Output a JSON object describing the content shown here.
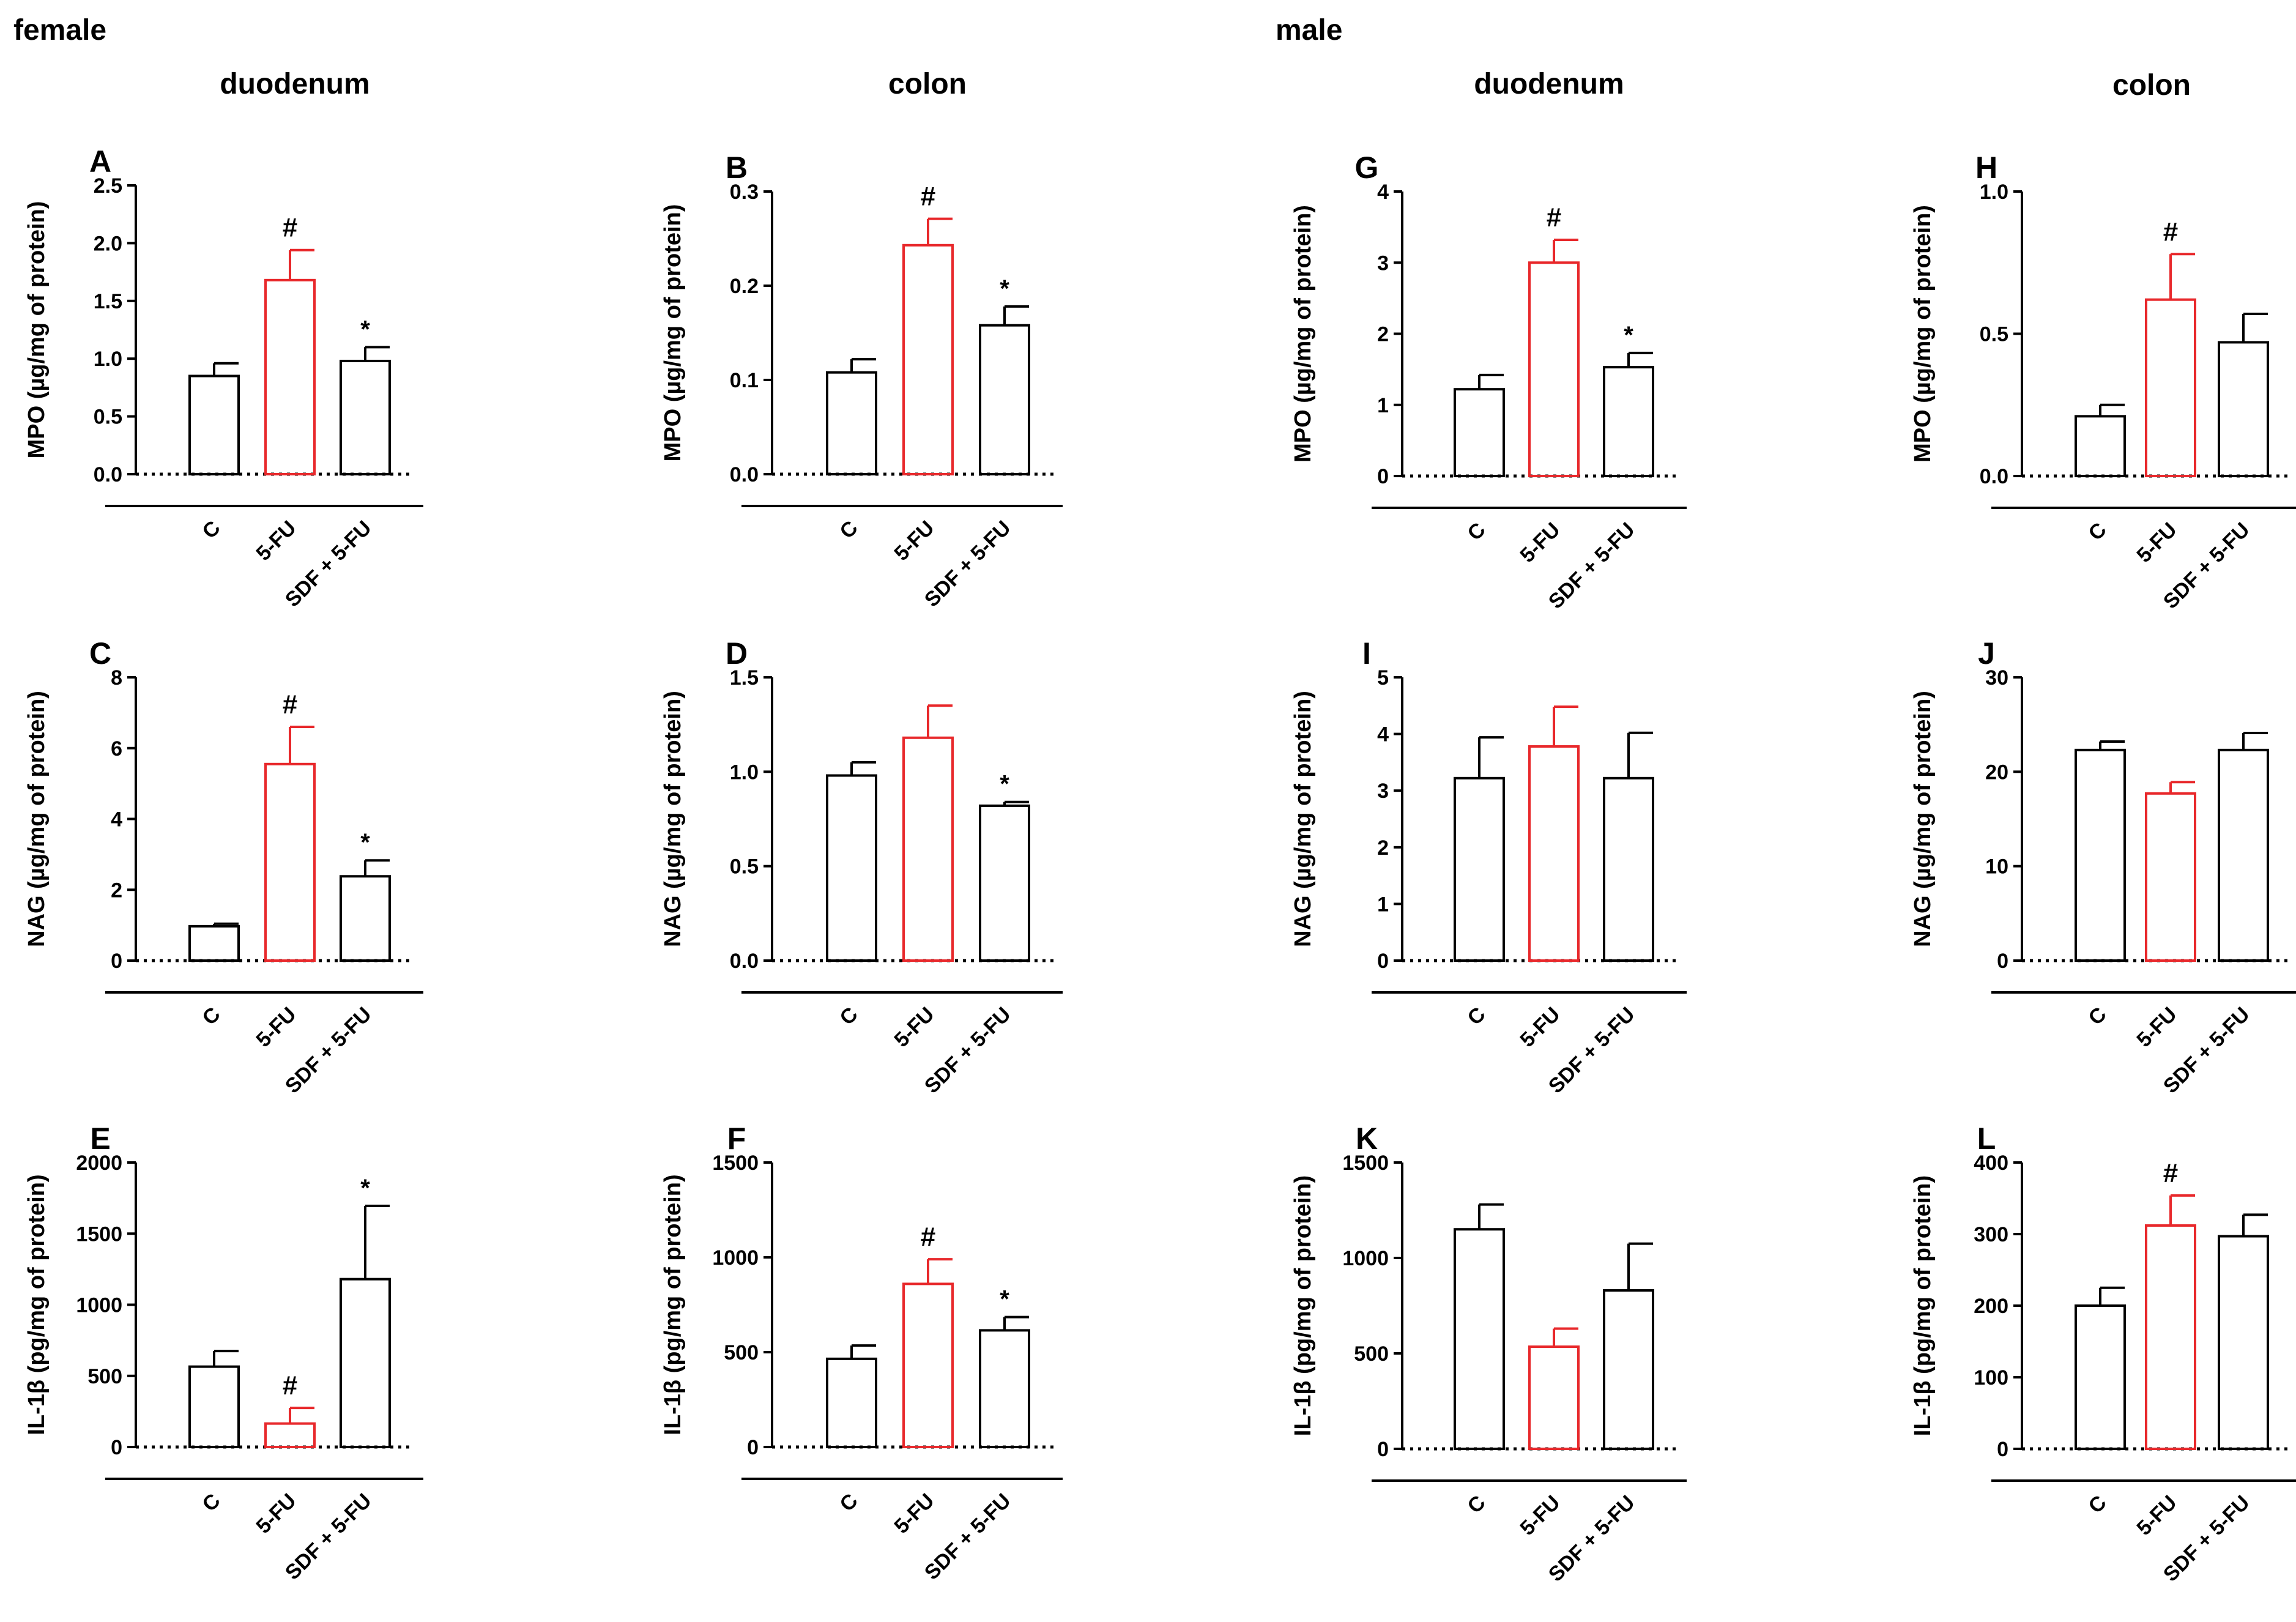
{
  "sections": [
    {
      "label": "female"
    },
    {
      "label": "male"
    }
  ],
  "regions": [
    {
      "label": "duodenum"
    },
    {
      "label": "colon"
    },
    {
      "label": "duodenum"
    },
    {
      "label": "colon"
    }
  ],
  "colors": {
    "control": "#000000",
    "treated": "#e8282b",
    "axis": "#000000"
  },
  "chart_data": [
    {
      "panel": "A",
      "type": "bar",
      "ylabel": "MPO (µg/mg of protein)",
      "ylim": [
        0,
        2.5
      ],
      "yticks": [
        0.0,
        0.5,
        1.0,
        1.5,
        2.0,
        2.5
      ],
      "ytick_labels": [
        "0.0",
        "0.5",
        "1.0",
        "1.5",
        "2.0",
        "2.5"
      ],
      "categories": [
        "C",
        "5-FU",
        "SDF + 5-FU"
      ],
      "values": [
        0.85,
        1.68,
        0.98
      ],
      "errors": [
        0.11,
        0.26,
        0.12
      ],
      "sig": [
        "",
        "#",
        "*"
      ]
    },
    {
      "panel": "B",
      "type": "bar",
      "ylabel": "MPO (µg/mg of protein)",
      "ylim": [
        0,
        0.3
      ],
      "yticks": [
        0.0,
        0.1,
        0.2,
        0.3
      ],
      "ytick_labels": [
        "0.0",
        "0.1",
        "0.2",
        "0.3"
      ],
      "categories": [
        "C",
        "5-FU",
        "SDF + 5-FU"
      ],
      "values": [
        0.108,
        0.243,
        0.158
      ],
      "errors": [
        0.014,
        0.028,
        0.02
      ],
      "sig": [
        "",
        "#",
        "*"
      ]
    },
    {
      "panel": "G",
      "type": "bar",
      "ylabel": "MPO (µg/mg of protein)",
      "ylim": [
        0,
        4
      ],
      "yticks": [
        0,
        1,
        2,
        3,
        4
      ],
      "ytick_labels": [
        "0",
        "1",
        "2",
        "3",
        "4"
      ],
      "categories": [
        "C",
        "5-FU",
        "SDF + 5-FU"
      ],
      "values": [
        1.22,
        3.0,
        1.53
      ],
      "errors": [
        0.2,
        0.32,
        0.2
      ],
      "sig": [
        "",
        "#",
        "*"
      ]
    },
    {
      "panel": "H",
      "type": "bar",
      "ylabel": "MPO (µg/mg of protein)",
      "ylim": [
        0,
        1.0
      ],
      "yticks": [
        0.0,
        0.5,
        1.0
      ],
      "ytick_labels": [
        "0.0",
        "0.5",
        "1.0"
      ],
      "categories": [
        "C",
        "5-FU",
        "SDF + 5-FU"
      ],
      "values": [
        0.21,
        0.62,
        0.47
      ],
      "errors": [
        0.04,
        0.16,
        0.1
      ],
      "sig": [
        "",
        "#",
        ""
      ]
    },
    {
      "panel": "C",
      "type": "bar",
      "ylabel": "NAG (µg/mg of protein)",
      "ylim": [
        0,
        8
      ],
      "yticks": [
        0,
        2,
        4,
        6,
        8
      ],
      "ytick_labels": [
        "0",
        "2",
        "4",
        "6",
        "8"
      ],
      "categories": [
        "C",
        "5-FU",
        "SDF + 5-FU"
      ],
      "values": [
        0.97,
        5.55,
        2.38
      ],
      "errors": [
        0.07,
        1.05,
        0.45
      ],
      "sig": [
        "",
        "#",
        "*"
      ]
    },
    {
      "panel": "D",
      "type": "bar",
      "ylabel": "NAG (µg/mg of protein)",
      "ylim": [
        0,
        1.5
      ],
      "yticks": [
        0.0,
        0.5,
        1.0,
        1.5
      ],
      "ytick_labels": [
        "0.0",
        "0.5",
        "1.0",
        "1.5"
      ],
      "categories": [
        "C",
        "5-FU",
        "SDF + 5-FU"
      ],
      "values": [
        0.98,
        1.18,
        0.82
      ],
      "errors": [
        0.07,
        0.17,
        0.02
      ],
      "sig": [
        "",
        "",
        "*"
      ]
    },
    {
      "panel": "I",
      "type": "bar",
      "ylabel": "NAG (µg/mg of protein)",
      "ylim": [
        0,
        5
      ],
      "yticks": [
        0,
        1,
        2,
        3,
        4,
        5
      ],
      "ytick_labels": [
        "0",
        "1",
        "2",
        "3",
        "4",
        "5"
      ],
      "categories": [
        "C",
        "5-FU",
        "SDF + 5-FU"
      ],
      "values": [
        3.22,
        3.78,
        3.22
      ],
      "errors": [
        0.72,
        0.7,
        0.8
      ],
      "sig": [
        "",
        "",
        ""
      ]
    },
    {
      "panel": "J",
      "type": "bar",
      "ylabel": "NAG (µg/mg of protein)",
      "ylim": [
        0,
        30
      ],
      "yticks": [
        0,
        10,
        20,
        30
      ],
      "ytick_labels": [
        "0",
        "10",
        "20",
        "30"
      ],
      "categories": [
        "C",
        "5-FU",
        "SDF + 5-FU"
      ],
      "values": [
        22.3,
        17.7,
        22.3
      ],
      "errors": [
        0.9,
        1.2,
        1.8
      ],
      "sig": [
        "",
        "",
        ""
      ]
    },
    {
      "panel": "E",
      "type": "bar",
      "ylabel": "IL-1β (pg/mg of protein)",
      "ylim": [
        0,
        2000
      ],
      "yticks": [
        0,
        500,
        1000,
        1500,
        2000
      ],
      "ytick_labels": [
        "0",
        "500",
        "1000",
        "1500",
        "2000"
      ],
      "categories": [
        "C",
        "5-FU",
        "SDF + 5-FU"
      ],
      "values": [
        565,
        165,
        1180
      ],
      "errors": [
        110,
        110,
        515
      ],
      "sig": [
        "",
        "#",
        "*"
      ]
    },
    {
      "panel": "F",
      "type": "bar",
      "ylabel": "IL-1β (pg/mg of protein)",
      "ylim": [
        0,
        1500
      ],
      "yticks": [
        0,
        500,
        1000,
        1500
      ],
      "ytick_labels": [
        "0",
        "500",
        "1000",
        "1500"
      ],
      "categories": [
        "C",
        "5-FU",
        "SDF + 5-FU"
      ],
      "values": [
        465,
        860,
        615
      ],
      "errors": [
        70,
        130,
        70
      ],
      "sig": [
        "",
        "#",
        "*"
      ]
    },
    {
      "panel": "K",
      "type": "bar",
      "ylabel": "IL-1β (pg/mg of protein)",
      "ylim": [
        0,
        1500
      ],
      "yticks": [
        0,
        500,
        1000,
        1500
      ],
      "ytick_labels": [
        "0",
        "500",
        "1000",
        "1500"
      ],
      "categories": [
        "C",
        "5-FU",
        "SDF + 5-FU"
      ],
      "values": [
        1150,
        535,
        830
      ],
      "errors": [
        130,
        95,
        245
      ],
      "sig": [
        "",
        "",
        ""
      ]
    },
    {
      "panel": "L",
      "type": "bar",
      "ylabel": "IL-1β (pg/mg of protein)",
      "ylim": [
        0,
        400
      ],
      "yticks": [
        0,
        100,
        200,
        300,
        400
      ],
      "ytick_labels": [
        "0",
        "100",
        "200",
        "300",
        "400"
      ],
      "categories": [
        "C",
        "5-FU",
        "SDF + 5-FU"
      ],
      "values": [
        200,
        312,
        297
      ],
      "errors": [
        25,
        42,
        30
      ],
      "sig": [
        "",
        "#",
        ""
      ]
    }
  ]
}
